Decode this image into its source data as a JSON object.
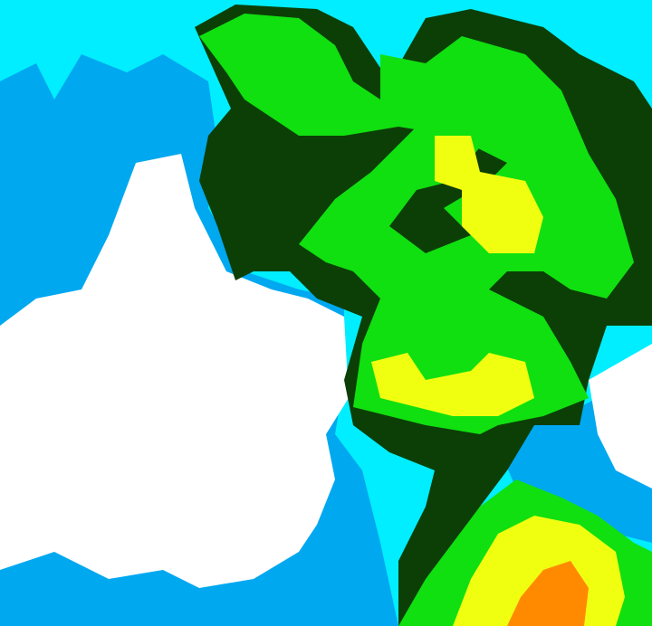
{
  "map": {
    "type": "classified-raster",
    "colors": {
      "background": "#00eeff",
      "blue": "#00a8f0",
      "white": "#ffffff",
      "dark_green": "#0c3f06",
      "green": "#10e010",
      "light_green": "#80f000",
      "yellow": "#f0ff10",
      "orange": "#ff8a00"
    }
  }
}
